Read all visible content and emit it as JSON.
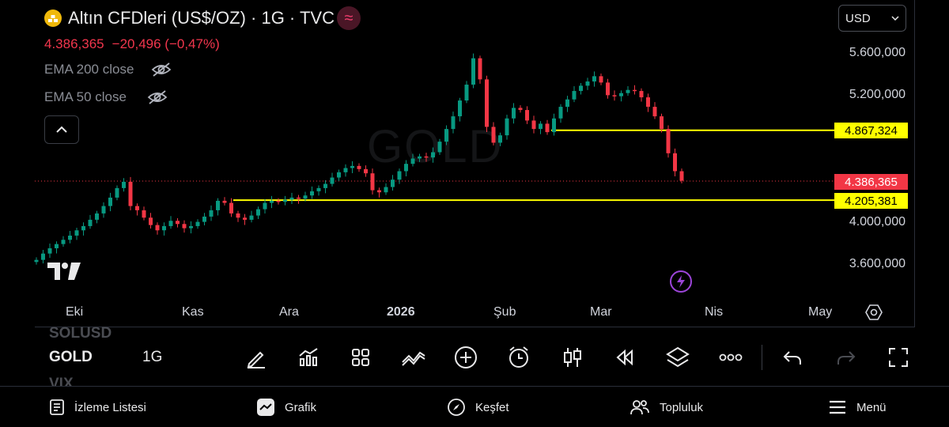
{
  "header": {
    "title": "Altın CFDleri (US$/OZ) · 1G · TVC",
    "brand_icon": "gold-bars-icon",
    "badge_icon": "wave-icon",
    "last_price": "4.386,365",
    "change": "−20,496 (−0,47%)",
    "currency": "USD"
  },
  "indicators": [
    {
      "label": "EMA 200 close",
      "visibility_icon": "eye-off-icon"
    },
    {
      "label": "EMA 50 close",
      "visibility_icon": "eye-off-icon"
    }
  ],
  "chart": {
    "watermark": "GOLD",
    "price_tags": {
      "resistance": "4.867,324",
      "current": "4.386,365",
      "support": "4.205,381"
    },
    "y_ticks": [
      "5.600,000",
      "5.200,000",
      "4.000,000",
      "3.600,000"
    ],
    "x_ticks": [
      "Eki",
      "Kas",
      "Ara",
      "2026",
      "Şub",
      "Mar",
      "Nis",
      "May"
    ],
    "colors": {
      "up": "#089981",
      "down": "#f23645",
      "level": "#ffff00",
      "current": "#f23645"
    }
  },
  "chart_data": {
    "type": "candlestick",
    "symbol": "GOLD",
    "interval": "1G",
    "y_ticks": [
      3600,
      4000,
      5200,
      5600
    ],
    "x_ticks": [
      "Eki",
      "Kas",
      "Ara",
      "2026",
      "Şub",
      "Mar",
      "Nis",
      "May"
    ],
    "horizontal_levels": [
      4867.324,
      4205.381
    ],
    "last_price": 4386.365,
    "close_path": [
      3640,
      3700,
      3750,
      3790,
      3830,
      3870,
      3920,
      3960,
      4020,
      4080,
      4150,
      4230,
      4320,
      4380,
      4150,
      4110,
      4040,
      3970,
      3920,
      3960,
      4010,
      3980,
      3940,
      3960,
      4000,
      4050,
      4110,
      4200,
      4180,
      4080,
      4040,
      4020,
      4060,
      4120,
      4180,
      4200,
      4190,
      4210,
      4230,
      4220,
      4250,
      4290,
      4320,
      4360,
      4420,
      4470,
      4510,
      4530,
      4500,
      4460,
      4300,
      4280,
      4330,
      4400,
      4480,
      4550,
      4600,
      4620,
      4610,
      4660,
      4760,
      4880,
      5000,
      5150,
      5300,
      5550,
      5350,
      4900,
      4750,
      4820,
      4980,
      5080,
      5060,
      4960,
      4880,
      4930,
      4850,
      4980,
      5090,
      5160,
      5240,
      5290,
      5330,
      5380,
      5320,
      5200,
      5190,
      5220,
      5250,
      5240,
      5180,
      5090,
      5000,
      4880,
      4650,
      4480,
      4390
    ]
  },
  "toolbar": {
    "symbol_ghost_top": "SOLUSD",
    "symbol": "GOLD",
    "symbol_ghost_bottom": "VIX",
    "interval": "1G"
  },
  "bottom_nav": [
    {
      "label": "İzleme Listesi",
      "icon": "watchlist-icon"
    },
    {
      "label": "Grafik",
      "icon": "chart-icon"
    },
    {
      "label": "Keşfet",
      "icon": "compass-icon"
    },
    {
      "label": "Topluluk",
      "icon": "community-icon"
    },
    {
      "label": "Menü",
      "icon": "menu-icon"
    }
  ]
}
